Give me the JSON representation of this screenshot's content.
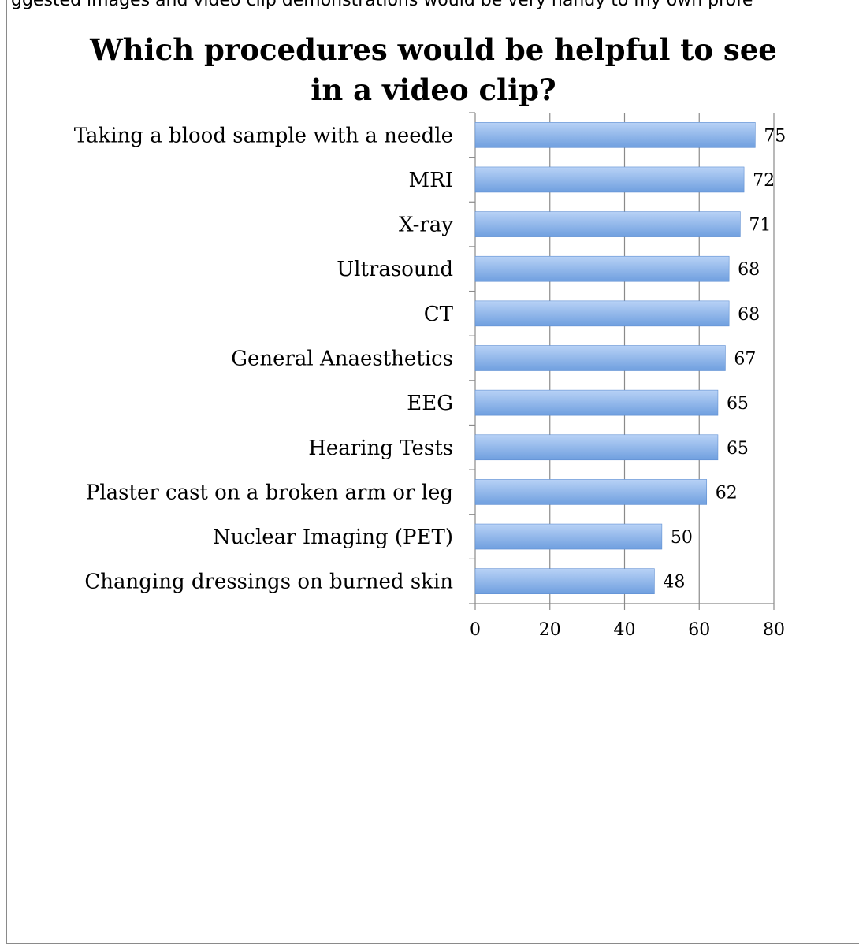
{
  "header_fragment": "ggested images and video clip demonstrations would be very handy to my own profe",
  "chart_data": {
    "type": "bar",
    "orientation": "horizontal",
    "title_lines": [
      "Which procedures would be helpful to see",
      "in a video clip?"
    ],
    "categories": [
      "Taking a blood sample with a needle",
      "MRI",
      "X-ray",
      "Ultrasound",
      "CT",
      "General Anaesthetics",
      "EEG",
      "Hearing Tests",
      "Plaster cast on a broken arm or leg",
      "Nuclear Imaging (PET)",
      "Changing dressings on burned skin"
    ],
    "values": [
      75,
      72,
      71,
      68,
      68,
      67,
      65,
      65,
      62,
      50,
      48
    ],
    "xlim": [
      0,
      80
    ],
    "xticks": [
      0,
      20,
      40,
      60,
      80
    ],
    "grid": true,
    "legend": "none",
    "bar_color": "#6f9fdf",
    "bar_color_light": "#b8d2f6"
  }
}
